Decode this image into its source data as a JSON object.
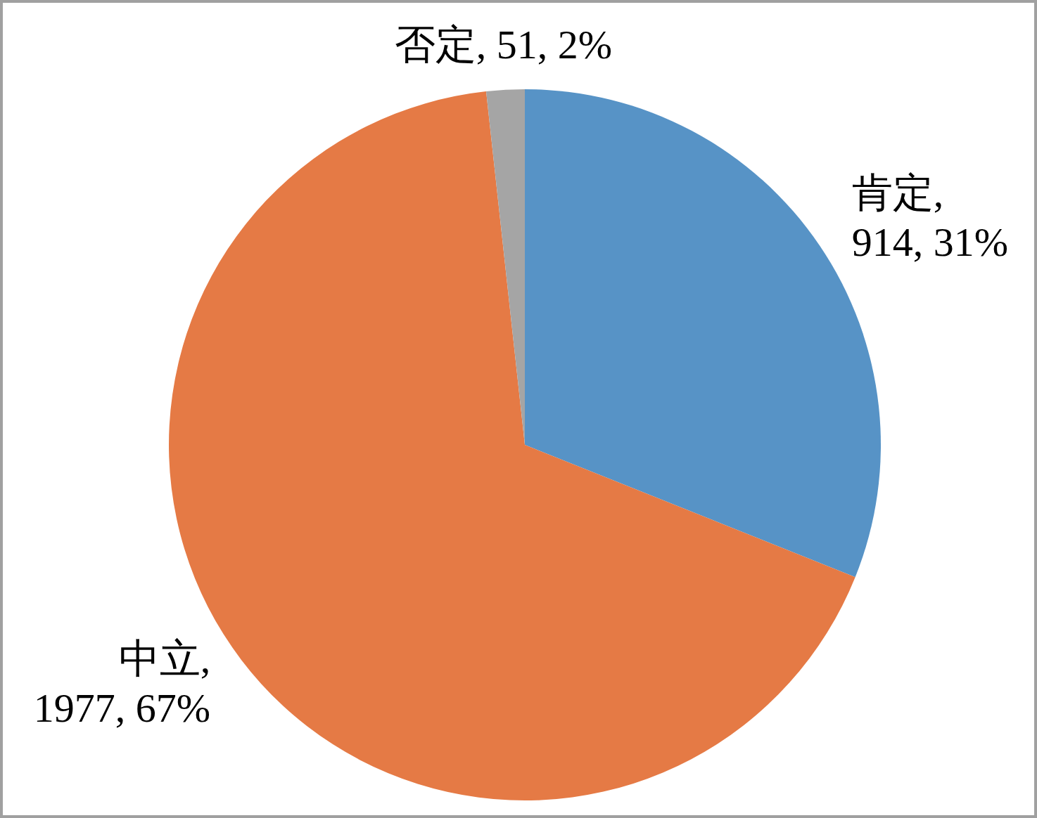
{
  "chart_data": {
    "type": "pie",
    "categories": [
      "肯定",
      "中立",
      "否定"
    ],
    "values": [
      914,
      1977,
      51
    ],
    "colors": [
      "#5793c6",
      "#e57a45",
      "#a5a5a5"
    ],
    "value_labels": [
      ", 914, 31%",
      ", 1977, 67%",
      ", 51, 2%"
    ]
  }
}
